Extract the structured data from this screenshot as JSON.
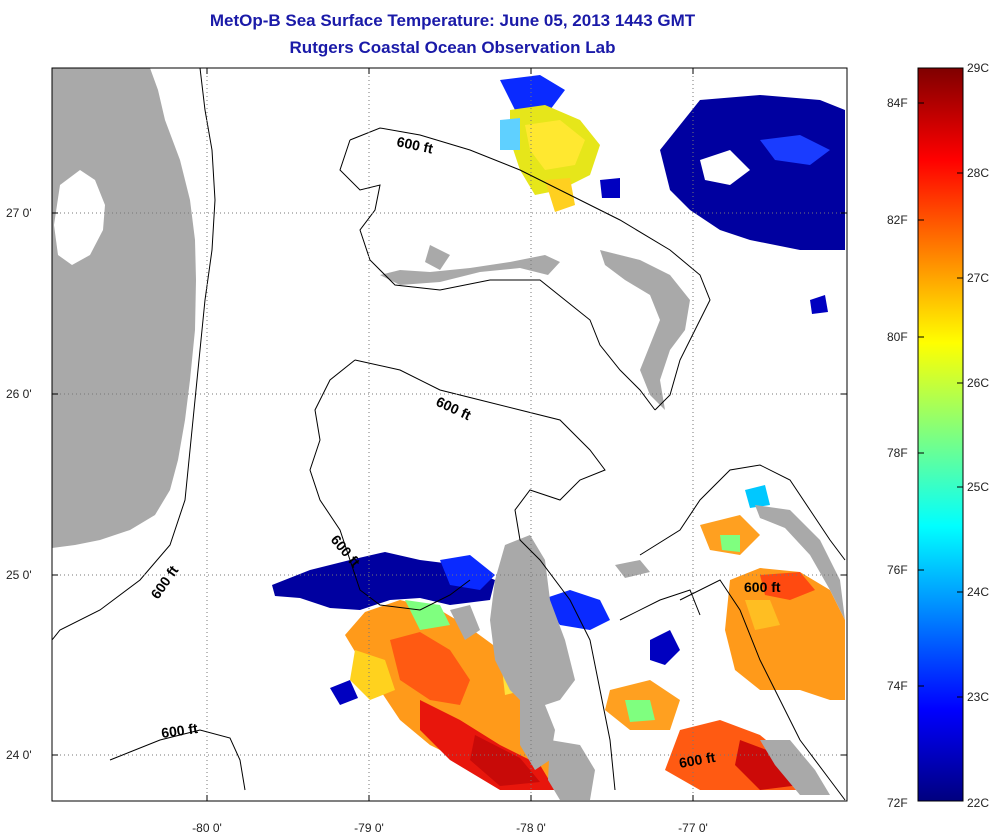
{
  "header": {
    "title": "MetOp-B Sea Surface Temperature:  June 05, 2013 1443 GMT",
    "subtitle": "Rutgers Coastal Ocean Observation Lab"
  },
  "map": {
    "lat_ticks": [
      "27 0'",
      "26 0'",
      "25 0'",
      "24 0'"
    ],
    "lon_ticks": [
      "-80 0'",
      "-79 0'",
      "-78 0'",
      "-77 0'"
    ],
    "contour_labels": [
      "600 ft",
      "600 ft",
      "600 ft",
      "600 ft",
      "600 ft",
      "600 ft"
    ],
    "colors": {
      "land": "#a9a9a9",
      "water_background": "#ffffff",
      "grid": "#555555"
    }
  },
  "colorbar": {
    "celsius_labels": [
      "29C",
      "28C",
      "27C",
      "26C",
      "25C",
      "24C",
      "23C",
      "22C"
    ],
    "fahrenheit_labels": [
      "84F",
      "82F",
      "80F",
      "78F",
      "76F",
      "74F",
      "72F"
    ],
    "colormap": [
      "#00007f",
      "#0000ff",
      "#007fff",
      "#00ffff",
      "#7fff7f",
      "#ffff00",
      "#ff7f00",
      "#ff0000",
      "#7f0000"
    ]
  }
}
